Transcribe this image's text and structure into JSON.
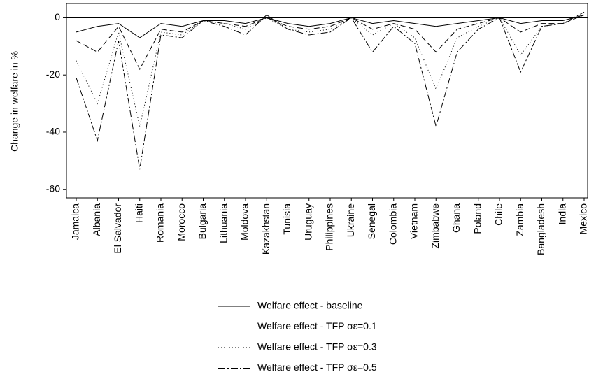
{
  "chart_data": {
    "type": "line",
    "y_label": "Change in welfare in %",
    "categories": [
      "Jamaica",
      "Albania",
      "El Salvador",
      "Haiti",
      "Romania",
      "Morocco",
      "Bulgaria",
      "Lithuania",
      "Moldova",
      "Kazakhstan",
      "Tunisia",
      "Uruguay",
      "Philippines",
      "Ukraine",
      "Senegal",
      "Colombia",
      "Vietnam",
      "Zimbabwe",
      "Ghana",
      "Poland",
      "Chile",
      "Zambia",
      "Bangladesh",
      "India",
      "Mexico"
    ],
    "series": [
      {
        "name": "Welfare effect  - baseline",
        "color": "#000000",
        "dash": "none",
        "values": [
          -5,
          -3,
          -2,
          -7,
          -2,
          -3,
          -1,
          -1,
          -2,
          0,
          -2,
          -3,
          -2,
          0,
          -2,
          -1,
          -2,
          -3,
          -2,
          -1,
          0,
          -2,
          -1,
          -1,
          1
        ]
      },
      {
        "name": "Welfare effect  - TFP σε=0.1",
        "color": "#000000",
        "dash": "8 4",
        "values": [
          -8,
          -12,
          -3,
          -18,
          -4,
          -5,
          -1,
          -2,
          -3,
          0,
          -3,
          -4,
          -3,
          0,
          -4,
          -2,
          -4,
          -12,
          -4,
          -2,
          0,
          -5,
          -2,
          -2,
          1
        ]
      },
      {
        "name": "Welfare effect  - TFP σε=0.3",
        "color": "#000000",
        "dash": "1 3",
        "values": [
          -15,
          -30,
          -5,
          -38,
          -5,
          -6,
          -1,
          -2,
          -4,
          0,
          -4,
          -5,
          -4,
          0,
          -6,
          -2,
          -7,
          -25,
          -7,
          -3,
          0,
          -13,
          -3,
          -2,
          1
        ]
      },
      {
        "name": "Welfare effect  - TFP σε=0.5",
        "color": "#000000",
        "dash": "10 3 2 3",
        "values": [
          -21,
          -43,
          -8,
          -53,
          -6,
          -7,
          -1,
          -3,
          -6,
          1,
          -4,
          -6,
          -5,
          0,
          -12,
          -3,
          -9,
          -38,
          -12,
          -4,
          0,
          -19,
          -3,
          -2,
          2
        ]
      }
    ],
    "ylim": [
      -63,
      5
    ],
    "yticks": [
      0,
      -20,
      -40,
      -60
    ],
    "grid": false
  }
}
